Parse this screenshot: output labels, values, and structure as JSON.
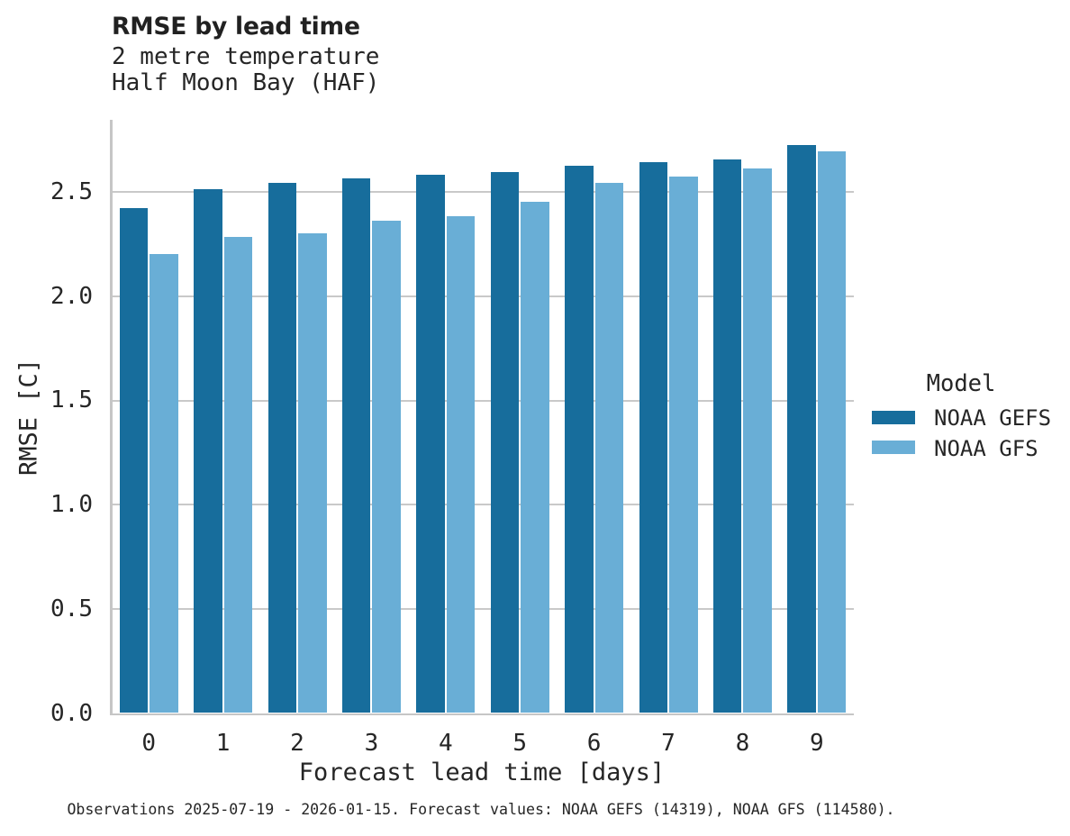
{
  "chart_data": {
    "type": "bar",
    "title": "RMSE by lead time",
    "subtitle_line1": "2 metre temperature",
    "subtitle_line2": "Half Moon Bay (HAF)",
    "xlabel": "Forecast lead time [days]",
    "ylabel": "RMSE [C]",
    "categories": [
      "0",
      "1",
      "2",
      "3",
      "4",
      "5",
      "6",
      "7",
      "8",
      "9"
    ],
    "series": [
      {
        "name": "NOAA GEFS",
        "color": "#176d9c",
        "values": [
          2.42,
          2.51,
          2.54,
          2.56,
          2.58,
          2.59,
          2.62,
          2.64,
          2.65,
          2.72
        ]
      },
      {
        "name": "NOAA GFS",
        "color": "#69aed6",
        "values": [
          2.2,
          2.28,
          2.3,
          2.36,
          2.38,
          2.45,
          2.54,
          2.57,
          2.61,
          2.69
        ]
      }
    ],
    "ylim": [
      0,
      2.84
    ],
    "yticks": [
      "0.0",
      "0.5",
      "1.0",
      "1.5",
      "2.0",
      "2.5"
    ],
    "ytick_values": [
      0,
      0.5,
      1.0,
      1.5,
      2.0,
      2.5
    ],
    "grid": "horizontal-major",
    "legend_position": "right",
    "legend_title": "Model",
    "caption": "Observations 2025-07-19 - 2026-01-15. Forecast values: NOAA GEFS (14319), NOAA GFS (114580)."
  },
  "colors": {
    "background": "#ffffff",
    "gridline": "#c9c9c9",
    "axis_line": "#c6c6c6",
    "text": "#262626",
    "series_1": "#176d9c",
    "series_2": "#69aed6"
  }
}
